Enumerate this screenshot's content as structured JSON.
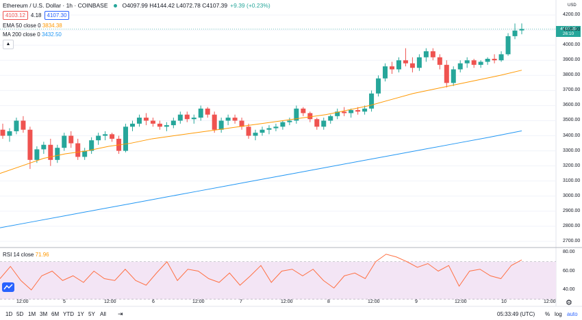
{
  "header": {
    "symbol_title": "Ethereum / U.S. Dollar · 1h · COINBASE",
    "ohlc": "O4097.99 H4144.42 L4072.78 C4107.39",
    "change": "+9.39 (+0.23%)"
  },
  "trade": {
    "bid": "4103.12",
    "spread": "4.18",
    "ask": "4107.30"
  },
  "indicators": {
    "ema_label": "EMA 50 close 0",
    "ema_value": "3834.38",
    "ma_label": "MA 200 close 0",
    "ma_value": "3432.50",
    "collapse_icon": "chevron-up-icon"
  },
  "rsi": {
    "label": "RSI 14 close",
    "value": "71.96",
    "ticks": [
      "80.00",
      "60.00",
      "40.00"
    ]
  },
  "price_axis": {
    "currency": "USD",
    "ticks": [
      "4200.00",
      "4100.00",
      "4000.00",
      "3900.00",
      "3800.00",
      "3700.00",
      "3600.00",
      "3500.00",
      "3400.00",
      "3300.00",
      "3200.00",
      "3100.00",
      "3000.00",
      "2900.00",
      "2800.00",
      "2700.00"
    ],
    "last_price": "4107.39",
    "countdown": "26:10"
  },
  "time_axis": [
    "12:00",
    "5",
    "12:00",
    "6",
    "12:00",
    "7",
    "12:00",
    "8",
    "12:00",
    "9",
    "12:00",
    "10",
    "12:00"
  ],
  "bottom_bar": {
    "ranges": [
      "1D",
      "5D",
      "1M",
      "3M",
      "6M",
      "YTD",
      "1Y",
      "5Y",
      "All"
    ],
    "goto_icon": "goto-date-icon",
    "clock": "05:33:49 (UTC)",
    "percent": "%",
    "log": "log",
    "auto": "auto",
    "settings_icon": "gear-icon"
  },
  "colors": {
    "up": "#26a69a",
    "down": "#ef5350",
    "ema": "#ff9800",
    "ma": "#2196f3",
    "rsi": "#ff7043",
    "rsi_band": "#f3e5f5"
  },
  "chart_data": {
    "type": "candlestick",
    "candles_ohlc_approx": [
      [
        3440,
        3480,
        3380,
        3400
      ],
      [
        3400,
        3450,
        3360,
        3430
      ],
      [
        3430,
        3520,
        3410,
        3500
      ],
      [
        3500,
        3530,
        3420,
        3440
      ],
      [
        3440,
        3460,
        3180,
        3240
      ],
      [
        3240,
        3330,
        3220,
        3310
      ],
      [
        3310,
        3360,
        3280,
        3340
      ],
      [
        3340,
        3380,
        3200,
        3240
      ],
      [
        3240,
        3340,
        3220,
        3320
      ],
      [
        3320,
        3420,
        3300,
        3400
      ],
      [
        3400,
        3430,
        3320,
        3350
      ],
      [
        3350,
        3380,
        3240,
        3260
      ],
      [
        3260,
        3320,
        3240,
        3300
      ],
      [
        3300,
        3390,
        3280,
        3370
      ],
      [
        3370,
        3420,
        3340,
        3400
      ],
      [
        3400,
        3430,
        3370,
        3410
      ],
      [
        3410,
        3420,
        3360,
        3380
      ],
      [
        3380,
        3400,
        3280,
        3300
      ],
      [
        3300,
        3480,
        3290,
        3460
      ],
      [
        3460,
        3500,
        3430,
        3480
      ],
      [
        3480,
        3540,
        3460,
        3520
      ],
      [
        3520,
        3550,
        3470,
        3500
      ],
      [
        3500,
        3520,
        3460,
        3480
      ],
      [
        3480,
        3500,
        3440,
        3460
      ],
      [
        3460,
        3490,
        3430,
        3470
      ],
      [
        3470,
        3520,
        3450,
        3500
      ],
      [
        3500,
        3560,
        3480,
        3540
      ],
      [
        3540,
        3560,
        3490,
        3510
      ],
      [
        3510,
        3540,
        3480,
        3520
      ],
      [
        3520,
        3600,
        3500,
        3580
      ],
      [
        3580,
        3590,
        3520,
        3540
      ],
      [
        3540,
        3560,
        3420,
        3440
      ],
      [
        3440,
        3520,
        3420,
        3500
      ],
      [
        3500,
        3540,
        3470,
        3520
      ],
      [
        3520,
        3540,
        3480,
        3500
      ],
      [
        3500,
        3520,
        3440,
        3460
      ],
      [
        3460,
        3480,
        3380,
        3400
      ],
      [
        3400,
        3440,
        3370,
        3420
      ],
      [
        3420,
        3460,
        3400,
        3440
      ],
      [
        3440,
        3470,
        3410,
        3450
      ],
      [
        3450,
        3480,
        3430,
        3460
      ],
      [
        3460,
        3500,
        3440,
        3490
      ],
      [
        3490,
        3520,
        3470,
        3500
      ],
      [
        3500,
        3600,
        3480,
        3580
      ],
      [
        3580,
        3590,
        3530,
        3550
      ],
      [
        3550,
        3560,
        3490,
        3510
      ],
      [
        3510,
        3520,
        3440,
        3460
      ],
      [
        3460,
        3520,
        3440,
        3500
      ],
      [
        3500,
        3540,
        3480,
        3530
      ],
      [
        3530,
        3580,
        3510,
        3560
      ],
      [
        3560,
        3590,
        3530,
        3550
      ],
      [
        3550,
        3580,
        3520,
        3570
      ],
      [
        3570,
        3590,
        3540,
        3560
      ],
      [
        3560,
        3600,
        3540,
        3580
      ],
      [
        3580,
        3700,
        3560,
        3680
      ],
      [
        3680,
        3800,
        3660,
        3780
      ],
      [
        3780,
        3880,
        3760,
        3860
      ],
      [
        3860,
        3890,
        3810,
        3840
      ],
      [
        3840,
        3920,
        3820,
        3900
      ],
      [
        3900,
        3980,
        3860,
        3880
      ],
      [
        3880,
        3920,
        3820,
        3850
      ],
      [
        3850,
        3940,
        3830,
        3920
      ],
      [
        3920,
        3980,
        3890,
        3960
      ],
      [
        3960,
        3980,
        3900,
        3920
      ],
      [
        3920,
        3940,
        3840,
        3870
      ],
      [
        3870,
        3900,
        3720,
        3750
      ],
      [
        3750,
        3860,
        3730,
        3840
      ],
      [
        3840,
        3900,
        3820,
        3880
      ],
      [
        3880,
        3920,
        3850,
        3900
      ],
      [
        3900,
        3910,
        3850,
        3870
      ],
      [
        3870,
        3900,
        3850,
        3890
      ],
      [
        3890,
        3920,
        3870,
        3910
      ],
      [
        3910,
        3940,
        3880,
        3900
      ],
      [
        3900,
        3960,
        3890,
        3940
      ],
      [
        3940,
        4080,
        3930,
        4060
      ],
      [
        4060,
        4144,
        4040,
        4097
      ],
      [
        4097.99,
        4144.42,
        4072.78,
        4107.39
      ]
    ],
    "ema50_approx": [
      3150,
      3200,
      3250,
      3280,
      3300,
      3330,
      3350,
      3380,
      3400,
      3420,
      3440,
      3460,
      3480,
      3500,
      3520,
      3540,
      3570,
      3600,
      3640,
      3680,
      3710,
      3740,
      3770,
      3800,
      3834.38
    ],
    "ma200_approx": [
      2790,
      2830,
      2870,
      2910,
      2950,
      2990,
      3030,
      3070,
      3110,
      3150,
      3190,
      3230,
      3270,
      3310,
      3350,
      3390,
      3432.5
    ],
    "rsi_approx": [
      52,
      65,
      50,
      40,
      55,
      60,
      50,
      55,
      48,
      60,
      52,
      50,
      62,
      50,
      45,
      58,
      70,
      50,
      62,
      60,
      52,
      48,
      58,
      45,
      55,
      66,
      48,
      60,
      62,
      55,
      62,
      50,
      42,
      55,
      58,
      52,
      70,
      78,
      75,
      70,
      64,
      68,
      60,
      66,
      44,
      60,
      62,
      55,
      52,
      66,
      71.96
    ],
    "rsi_band": [
      30,
      70
    ],
    "y_range": [
      2700,
      4200
    ]
  }
}
